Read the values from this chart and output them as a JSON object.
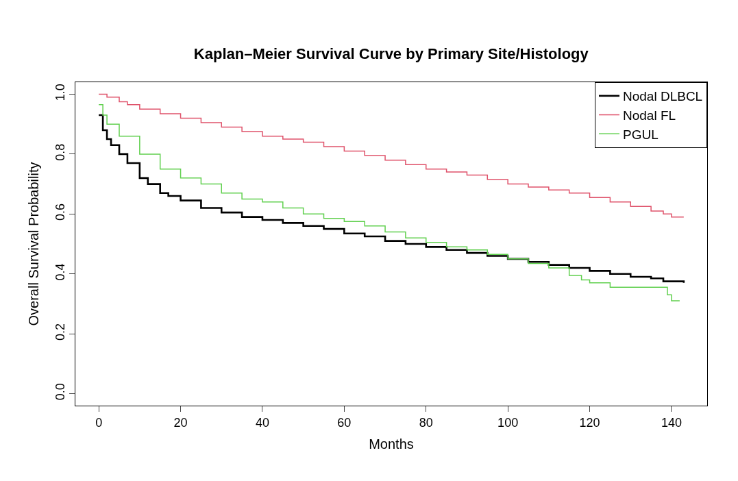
{
  "chart_data": {
    "type": "step",
    "title": "Kaplan–Meier Survival Curve by Primary Site/Histology",
    "xlabel": "Months",
    "ylabel": "Overall Survival Probability",
    "xlim": [
      -5.72,
      148.72
    ],
    "ylim": [
      -0.04,
      1.04
    ],
    "xticks": [
      0,
      20,
      40,
      60,
      80,
      100,
      120,
      140
    ],
    "yticks": [
      {
        "value": 0,
        "label": "0.0"
      },
      {
        "value": 0.2,
        "label": "0.2"
      },
      {
        "value": 0.4,
        "label": "0.4"
      },
      {
        "value": 0.6,
        "label": "0.6"
      },
      {
        "value": 0.8,
        "label": "0.8"
      },
      {
        "value": 1,
        "label": "1.0"
      }
    ],
    "legend": "top right",
    "series": [
      {
        "name": "Nodal DLBCL",
        "color": "#000000",
        "x": [
          0,
          1,
          2,
          3,
          5,
          7,
          10,
          12,
          15,
          17,
          20,
          25,
          30,
          35,
          40,
          45,
          50,
          55,
          60,
          65,
          70,
          75,
          80,
          85,
          90,
          95,
          100,
          105,
          110,
          115,
          120,
          125,
          130,
          135,
          138,
          143
        ],
        "values": [
          0.93,
          0.88,
          0.85,
          0.83,
          0.8,
          0.77,
          0.72,
          0.7,
          0.67,
          0.66,
          0.645,
          0.62,
          0.605,
          0.59,
          0.58,
          0.57,
          0.56,
          0.55,
          0.535,
          0.525,
          0.51,
          0.5,
          0.49,
          0.48,
          0.47,
          0.46,
          0.45,
          0.44,
          0.43,
          0.42,
          0.41,
          0.4,
          0.39,
          0.385,
          0.375,
          0.37
        ]
      },
      {
        "name": "Nodal FL",
        "color": "#df536b",
        "x": [
          0,
          2,
          5,
          7,
          10,
          15,
          20,
          25,
          30,
          35,
          40,
          45,
          50,
          55,
          60,
          65,
          70,
          75,
          80,
          85,
          90,
          95,
          100,
          105,
          110,
          115,
          120,
          125,
          130,
          135,
          138,
          140,
          143
        ],
        "values": [
          1.0,
          0.99,
          0.975,
          0.965,
          0.95,
          0.935,
          0.92,
          0.905,
          0.89,
          0.875,
          0.86,
          0.85,
          0.84,
          0.825,
          0.81,
          0.795,
          0.78,
          0.765,
          0.75,
          0.74,
          0.73,
          0.715,
          0.7,
          0.69,
          0.68,
          0.67,
          0.655,
          0.64,
          0.625,
          0.61,
          0.6,
          0.59,
          0.59
        ]
      },
      {
        "name": "PGUL",
        "color": "#61d04f",
        "x": [
          0,
          1,
          2,
          5,
          10,
          15,
          20,
          25,
          30,
          35,
          40,
          45,
          50,
          55,
          60,
          65,
          70,
          75,
          80,
          85,
          90,
          95,
          100,
          105,
          110,
          115,
          118,
          120,
          125,
          130,
          138,
          139,
          140,
          142
        ],
        "values": [
          0.965,
          0.93,
          0.9,
          0.86,
          0.8,
          0.75,
          0.72,
          0.7,
          0.67,
          0.65,
          0.64,
          0.62,
          0.6,
          0.585,
          0.575,
          0.56,
          0.54,
          0.52,
          0.505,
          0.49,
          0.48,
          0.465,
          0.45,
          0.435,
          0.42,
          0.395,
          0.38,
          0.37,
          0.355,
          0.355,
          0.355,
          0.33,
          0.31,
          0.31
        ]
      }
    ]
  }
}
